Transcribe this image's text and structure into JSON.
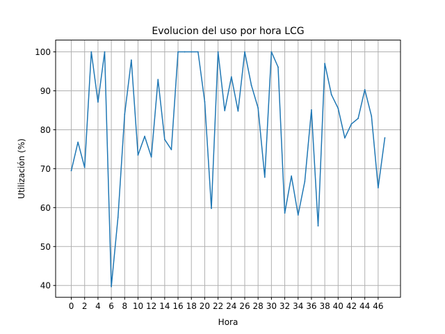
{
  "chart_data": {
    "type": "line",
    "title": "Evolucion del uso por hora LCG",
    "xlabel": "Hora",
    "ylabel": "Utilización (%)",
    "xlim": [
      -2.35,
      49.35
    ],
    "ylim": [
      36.97,
      103.03
    ],
    "xticks": [
      0,
      2,
      4,
      6,
      8,
      10,
      12,
      14,
      16,
      18,
      20,
      22,
      24,
      26,
      28,
      30,
      32,
      34,
      36,
      38,
      40,
      42,
      44,
      46
    ],
    "yticks": [
      40,
      50,
      60,
      70,
      80,
      90,
      100
    ],
    "grid": true,
    "series": [
      {
        "color": "#1f77b4",
        "x": [
          0,
          1,
          2,
          3,
          4,
          5,
          6,
          7,
          8,
          9,
          10,
          11,
          12,
          13,
          14,
          15,
          16,
          17,
          18,
          19,
          20,
          21,
          22,
          23,
          24,
          25,
          26,
          27,
          28,
          29,
          30,
          31,
          32,
          33,
          34,
          35,
          36,
          37,
          38,
          39,
          40,
          41,
          42,
          43,
          44,
          45,
          46,
          47
        ],
        "values": [
          69.5,
          76.8,
          70.3,
          100,
          87.1,
          100,
          39.7,
          57.5,
          84,
          97.9,
          73.5,
          78.3,
          73,
          92.9,
          77.5,
          74.9,
          100,
          100,
          100,
          100,
          87.2,
          59.8,
          100,
          84.9,
          93.6,
          84.8,
          100,
          91.4,
          85.6,
          67.8,
          100,
          96.1,
          58.6,
          68.1,
          58.1,
          66.7,
          85.1,
          55.3,
          97,
          89,
          85.5,
          77.9,
          81.5,
          82.9,
          90.3,
          83.5,
          65.1,
          77.9
        ]
      }
    ]
  }
}
